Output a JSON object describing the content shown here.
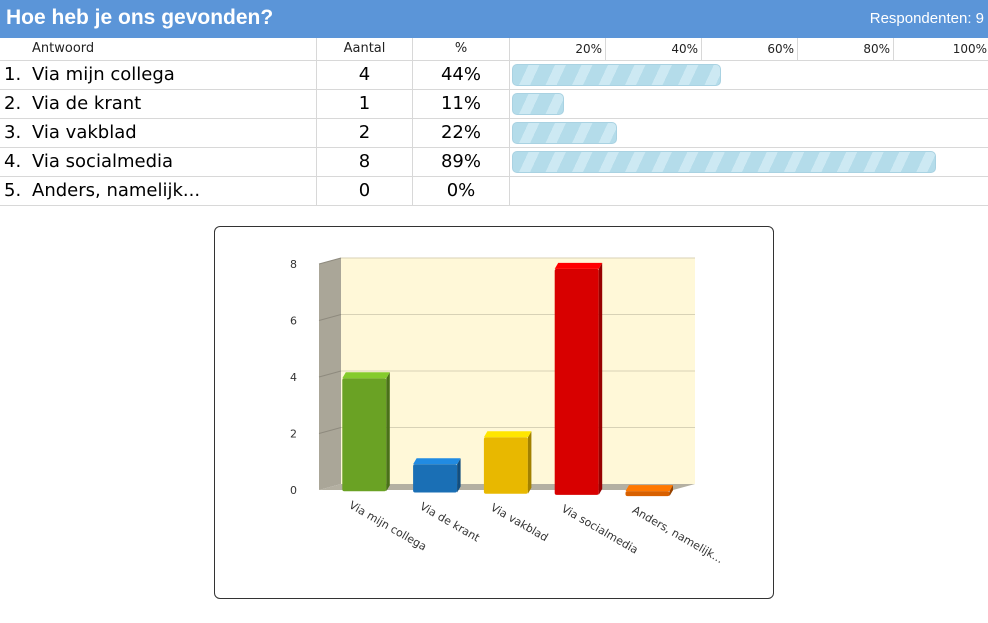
{
  "header": {
    "title": "Hoe heb je ons gevonden?",
    "respondents": "Respondenten: 9"
  },
  "table": {
    "headers": {
      "answer": "Antwoord",
      "count": "Aantal",
      "percent": "%"
    },
    "scale": [
      "20%",
      "40%",
      "60%",
      "80%",
      "100%"
    ],
    "rows": [
      {
        "num": "1.",
        "label": "Via mijn collega",
        "count": "4",
        "percent": "44%",
        "value": 44
      },
      {
        "num": "2.",
        "label": "Via de krant",
        "count": "1",
        "percent": "11%",
        "value": 11
      },
      {
        "num": "3.",
        "label": "Via vakblad",
        "count": "2",
        "percent": "22%",
        "value": 22
      },
      {
        "num": "4.",
        "label": "Via socialmedia",
        "count": "8",
        "percent": "89%",
        "value": 89
      },
      {
        "num": "5.",
        "label": "Anders, namelijk...",
        "count": "0",
        "percent": "0%",
        "value": 0
      }
    ]
  },
  "chart_data": {
    "type": "bar",
    "categories": [
      "Via mijn collega",
      "Via de krant",
      "Via vakblad",
      "Via socialmedia",
      "Anders, namelijk..."
    ],
    "values": [
      4,
      1,
      2,
      8,
      0
    ],
    "colors": [
      "#6aa224",
      "#1a6fb5",
      "#e8b800",
      "#d80000",
      "#d86000"
    ],
    "yticks": [
      "0",
      "2",
      "4",
      "6",
      "8"
    ],
    "ylim": [
      0,
      8
    ],
    "grid": true,
    "style": "3d",
    "background": "#fff8d8"
  }
}
